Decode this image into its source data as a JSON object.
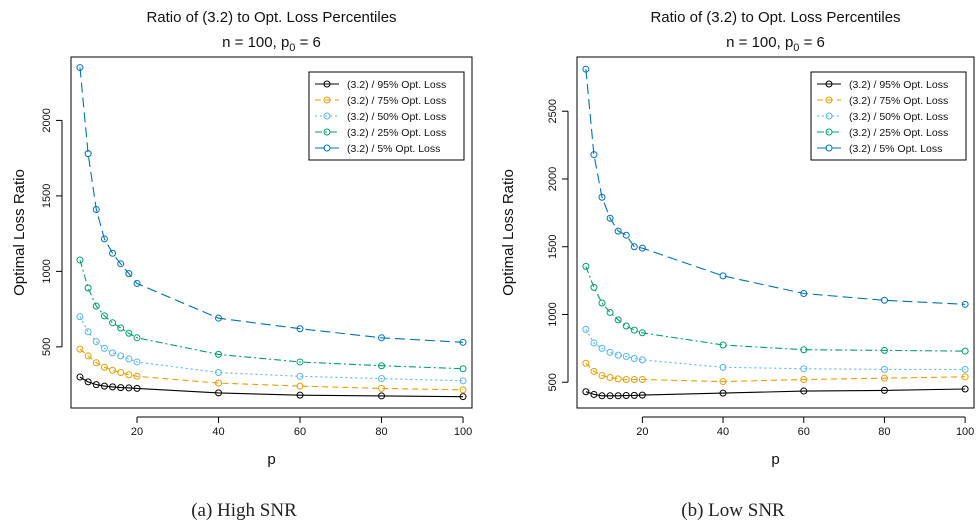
{
  "chart_data": [
    {
      "type": "line",
      "title": "Ratio of (3.2) to Opt. Loss Percentiles",
      "subtitle": {
        "prefix": "n = 100, p",
        "sub": "0",
        "suffix": " = 6"
      },
      "xlabel": "p",
      "ylabel": "Optimal Loss Ratio",
      "caption": "(a)  High SNR",
      "xlim": [
        3.8,
        102.2
      ],
      "ylim": [
        95,
        2420
      ],
      "xticks": [
        20,
        40,
        60,
        80,
        100
      ],
      "yticks": [
        500,
        1000,
        1500,
        2000
      ],
      "grid": false,
      "legend": "top-right",
      "x": [
        6,
        8,
        10,
        12,
        14,
        16,
        18,
        20,
        40,
        60,
        80,
        100
      ],
      "series": [
        {
          "name": "(3.2) / 95% Opt. Loss",
          "color": "#000000",
          "dash": "",
          "values": [
            300,
            268,
            250,
            240,
            235,
            230,
            228,
            225,
            195,
            180,
            175,
            170
          ]
        },
        {
          "name": "(3.2) / 75% Opt. Loss",
          "color": "#E69F00",
          "dash": "6,4",
          "values": [
            485,
            440,
            395,
            365,
            345,
            330,
            315,
            305,
            260,
            240,
            225,
            215
          ]
        },
        {
          "name": "(3.2) / 50% Opt. Loss",
          "color": "#56B4E9",
          "dash": "2,3",
          "values": [
            700,
            600,
            535,
            490,
            460,
            440,
            420,
            400,
            330,
            305,
            290,
            275
          ]
        },
        {
          "name": "(3.2) / 25% Opt. Loss",
          "color": "#009E73",
          "dash": "7,3,2,3",
          "values": [
            1075,
            890,
            770,
            705,
            660,
            625,
            590,
            560,
            450,
            400,
            375,
            355
          ]
        },
        {
          "name": "(3.2) / 5% Opt. Loss",
          "color": "#0072B2",
          "dash": "10,5",
          "values": [
            2350,
            1780,
            1410,
            1215,
            1120,
            1050,
            985,
            920,
            690,
            620,
            560,
            530
          ]
        }
      ]
    },
    {
      "type": "line",
      "title": "Ratio of (3.2) to Opt. Loss Percentiles",
      "subtitle": {
        "prefix": "n = 100, p",
        "sub": "0",
        "suffix": " = 6"
      },
      "xlabel": "p",
      "ylabel": "Optimal Loss Ratio",
      "caption": "(b)  Low SNR",
      "xlim": [
        3.8,
        102.2
      ],
      "ylim": [
        310,
        2900
      ],
      "xticks": [
        20,
        40,
        60,
        80,
        100
      ],
      "yticks": [
        500,
        1000,
        1500,
        2000,
        2500
      ],
      "grid": false,
      "legend": "top-right",
      "x": [
        6,
        8,
        10,
        12,
        14,
        16,
        18,
        20,
        40,
        60,
        80,
        100
      ],
      "series": [
        {
          "name": "(3.2) / 95% Opt. Loss",
          "color": "#000000",
          "dash": "",
          "values": [
            430,
            410,
            400,
            400,
            400,
            402,
            403,
            405,
            420,
            435,
            440,
            450
          ]
        },
        {
          "name": "(3.2) / 75% Opt. Loss",
          "color": "#E69F00",
          "dash": "6,4",
          "values": [
            640,
            580,
            550,
            535,
            525,
            520,
            520,
            520,
            505,
            520,
            530,
            540
          ]
        },
        {
          "name": "(3.2) / 50% Opt. Loss",
          "color": "#56B4E9",
          "dash": "2,3",
          "values": [
            890,
            790,
            750,
            720,
            700,
            690,
            675,
            665,
            610,
            600,
            595,
            595
          ]
        },
        {
          "name": "(3.2) / 25% Opt. Loss",
          "color": "#009E73",
          "dash": "7,3,2,3",
          "values": [
            1355,
            1200,
            1085,
            1015,
            960,
            915,
            885,
            865,
            775,
            740,
            735,
            730
          ]
        },
        {
          "name": "(3.2) / 5% Opt. Loss",
          "color": "#0072B2",
          "dash": "10,5",
          "values": [
            2810,
            2180,
            1865,
            1710,
            1615,
            1585,
            1500,
            1490,
            1285,
            1155,
            1105,
            1075
          ]
        }
      ]
    }
  ]
}
